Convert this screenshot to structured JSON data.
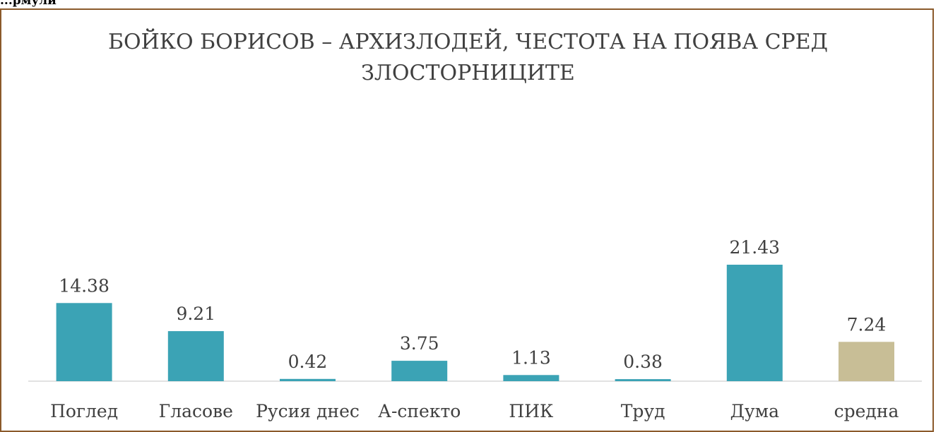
{
  "header_fragment": "...рмули",
  "chart_data": {
    "type": "bar",
    "title": "БОЙКО БОРИСОВ – АРХИЗЛОДЕЙ, ЧЕСТОТА НА ПОЯВА СРЕД ЗЛОСТОРНИЦИТЕ",
    "categories": [
      "Поглед",
      "Гласове",
      "Русия днес",
      "А-спекто",
      "ПИК",
      "Труд",
      "Дума",
      "средна"
    ],
    "values": [
      14.38,
      9.21,
      0.42,
      3.75,
      1.13,
      0.38,
      21.43,
      7.24
    ],
    "value_labels": [
      "14.38",
      "9.21",
      "0.42",
      "3.75",
      "1.13",
      "0.38",
      "21.43",
      "7.24"
    ],
    "xlabel": "",
    "ylabel": "",
    "ylim": [
      0,
      25
    ],
    "grid": false,
    "legend": "none",
    "colors": {
      "default": "#3ba3b5",
      "highlight": "#c8be96",
      "frame": "#8b5a2b",
      "text": "#404040",
      "axis": "#d9d9d9"
    },
    "highlight_index": 7
  }
}
